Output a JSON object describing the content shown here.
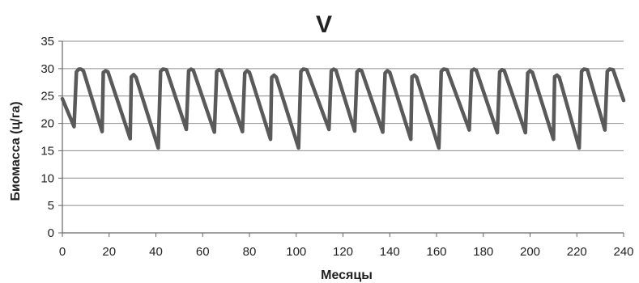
{
  "chart_data": {
    "type": "line",
    "title": "V",
    "xlabel": "Месяцы",
    "ylabel": "Биомасса (ц/га)",
    "xlim": [
      0,
      240
    ],
    "ylim": [
      0,
      35
    ],
    "xticks": [
      0,
      20,
      40,
      60,
      80,
      100,
      120,
      140,
      160,
      180,
      200,
      220,
      240
    ],
    "yticks": [
      0,
      5,
      10,
      15,
      20,
      25,
      30,
      35
    ],
    "grid": "horizontal",
    "series_color": "#5a5a5a",
    "series": [
      {
        "points": [
          [
            0,
            24.5
          ],
          [
            5,
            19.4
          ],
          [
            6,
            29.4
          ],
          [
            7,
            29.9
          ],
          [
            8,
            29.9
          ],
          [
            9,
            29.6
          ],
          [
            17,
            18.5
          ],
          [
            17.5,
            29.3
          ],
          [
            18.5,
            29.6
          ],
          [
            19.5,
            29.4
          ],
          [
            29,
            17.2
          ],
          [
            29.5,
            28.5
          ],
          [
            30.5,
            28.9
          ],
          [
            31.5,
            28.4
          ],
          [
            41,
            15.5
          ],
          [
            42,
            29.5
          ],
          [
            43,
            29.9
          ],
          [
            44.5,
            29.8
          ],
          [
            53,
            18.9
          ],
          [
            54,
            29.6
          ],
          [
            55,
            29.9
          ],
          [
            56,
            29.7
          ],
          [
            65,
            18.4
          ],
          [
            66,
            29.5
          ],
          [
            67,
            29.8
          ],
          [
            68,
            29.6
          ],
          [
            77,
            18.5
          ],
          [
            78,
            29.2
          ],
          [
            79,
            29.6
          ],
          [
            80,
            29.3
          ],
          [
            89,
            17.1
          ],
          [
            89.5,
            28.4
          ],
          [
            90.5,
            28.8
          ],
          [
            91.5,
            28.4
          ],
          [
            101,
            15.5
          ],
          [
            102,
            29.5
          ],
          [
            103,
            29.9
          ],
          [
            104.5,
            29.8
          ],
          [
            114,
            18.9
          ],
          [
            115,
            29.6
          ],
          [
            116,
            29.9
          ],
          [
            117,
            29.7
          ],
          [
            125,
            18.6
          ],
          [
            126,
            29.4
          ],
          [
            127,
            29.8
          ],
          [
            128,
            29.6
          ],
          [
            137,
            18.4
          ],
          [
            138,
            29.2
          ],
          [
            139,
            29.6
          ],
          [
            140,
            29.3
          ],
          [
            149,
            17.1
          ],
          [
            149.5,
            28.5
          ],
          [
            150.5,
            28.8
          ],
          [
            151.5,
            28.4
          ],
          [
            161,
            15.5
          ],
          [
            162,
            29.5
          ],
          [
            163,
            29.9
          ],
          [
            164.5,
            29.8
          ],
          [
            174,
            18.8
          ],
          [
            175,
            29.6
          ],
          [
            176,
            29.9
          ],
          [
            177,
            29.7
          ],
          [
            186,
            18.3
          ],
          [
            187,
            29.4
          ],
          [
            188,
            29.8
          ],
          [
            189,
            29.6
          ],
          [
            198,
            18.3
          ],
          [
            199,
            29.2
          ],
          [
            200,
            29.6
          ],
          [
            201,
            29.3
          ],
          [
            210,
            17.1
          ],
          [
            210.5,
            28.5
          ],
          [
            211.5,
            28.8
          ],
          [
            212.5,
            28.4
          ],
          [
            221,
            15.5
          ],
          [
            222,
            29.5
          ],
          [
            223,
            29.9
          ],
          [
            224.5,
            29.8
          ],
          [
            232,
            18.8
          ],
          [
            233,
            29.5
          ],
          [
            234,
            29.9
          ],
          [
            235.5,
            29.8
          ],
          [
            240,
            24.2
          ]
        ]
      }
    ]
  }
}
